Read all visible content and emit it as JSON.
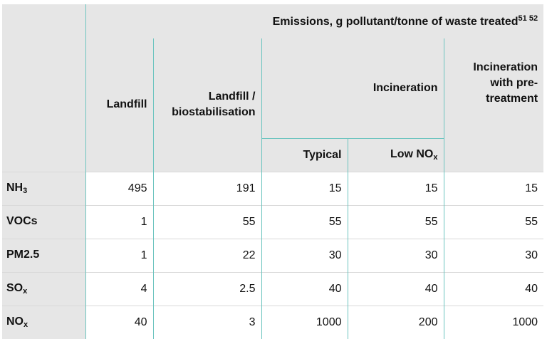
{
  "header": {
    "group_label": "Emissions, g pollutant/tonne of waste treated",
    "group_refs": "51 52",
    "columns": {
      "landfill": "Landfill",
      "landfill_bio_line1": "Landfill /",
      "landfill_bio_line2": "biostabilisation",
      "incineration": "Incineration",
      "incin_pre_line1": "Incineration",
      "incin_pre_line2": "with pre-",
      "incin_pre_line3": "treatment",
      "typical": "Typical",
      "low_nox_base": "Low NO",
      "low_nox_sub": "x"
    }
  },
  "rows": [
    {
      "pollutant_base": "NH",
      "pollutant_sub": "3",
      "landfill": "495",
      "landfill_bio": "191",
      "typical": "15",
      "low_nox": "15",
      "incin_pre": "15"
    },
    {
      "pollutant_base": "VOCs",
      "pollutant_sub": "",
      "landfill": "1",
      "landfill_bio": "55",
      "typical": "55",
      "low_nox": "55",
      "incin_pre": "55"
    },
    {
      "pollutant_base": "PM2.5",
      "pollutant_sub": "",
      "landfill": "1",
      "landfill_bio": "22",
      "typical": "30",
      "low_nox": "30",
      "incin_pre": "30"
    },
    {
      "pollutant_base": "SO",
      "pollutant_sub": "x",
      "landfill": "4",
      "landfill_bio": "2.5",
      "typical": "40",
      "low_nox": "40",
      "incin_pre": "40"
    },
    {
      "pollutant_base": "NO",
      "pollutant_sub": "x",
      "landfill": "40",
      "landfill_bio": "3",
      "typical": "1000",
      "low_nox": "200",
      "incin_pre": "1000"
    }
  ],
  "colors": {
    "header_bg": "#e6e6e6",
    "divider": "#6cc4bf",
    "row_rule": "#d9d9d9"
  }
}
